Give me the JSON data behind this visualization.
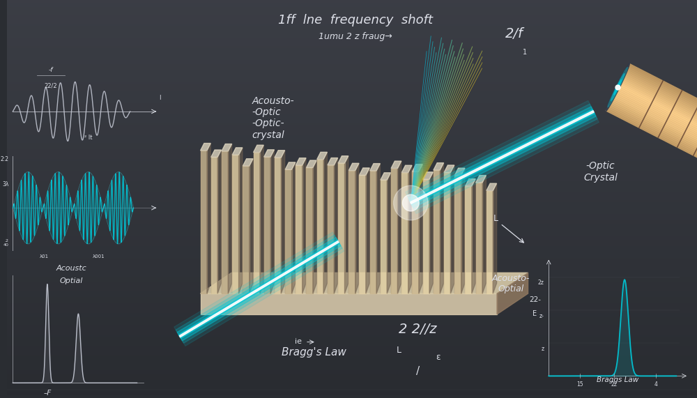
{
  "bg_dark": "#2a2d32",
  "bg_mid": "#3a3d45",
  "bg_light": "#4a4d55",
  "cyan_color": "#00c8d8",
  "cyan_bright": "#40e8f8",
  "cyan_glow": "#80f0ff",
  "white_wave": "#c8ccd8",
  "white_text": "#dde0e8",
  "yellow_beam": "#d8c040",
  "gold_beam": "#e8a820",
  "crystal_tan": "#c8b890",
  "crystal_light": "#e0d0b0",
  "crystal_dark": "#907860",
  "crystal_shadow": "#706050",
  "crystal_base": "#b8a880",
  "laser_body": "#b09070",
  "laser_ring": "#c8a880",
  "laser_tip": "#808090",
  "grid_color": "#555860",
  "title1": "1ff  lne  frequency  shoft",
  "title2": "1umu 2 z fraug→",
  "label_acousto_optic": "Acousto-\n-Optic\n-Optic-\ncrystal",
  "label_optic_crystal": "-Optic\nCrystal",
  "label_acousto_optial_br": "Acousto-\nOptial",
  "label_2f": "2/f",
  "label_braggs": "Bragg's Law",
  "label_22z": "2 2//z",
  "label_braggs_br": "Braggs Law"
}
